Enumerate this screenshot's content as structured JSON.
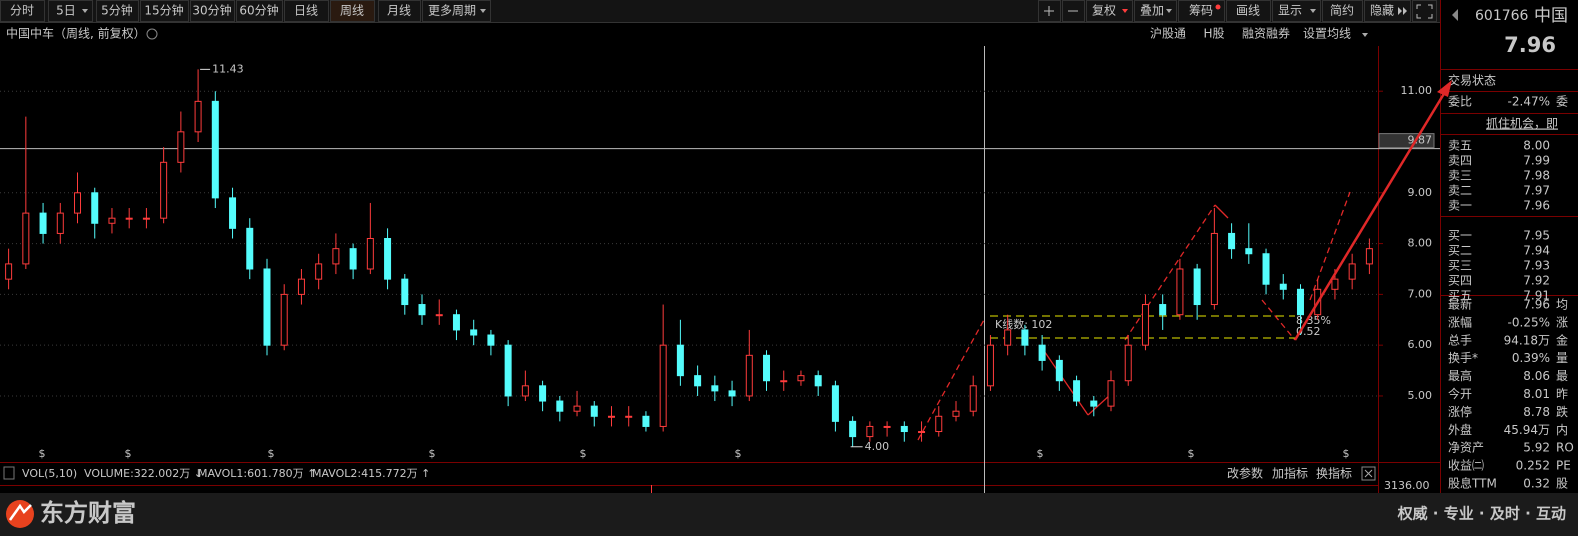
{
  "toolbar": {
    "periods": [
      "分时",
      "5日",
      "5分钟",
      "15分钟",
      "30分钟",
      "60分钟",
      "日线",
      "周线",
      "月线",
      "更多周期"
    ],
    "tools": [
      "复权",
      "叠加",
      "筹码",
      "画线",
      "显示",
      "简约",
      "隐藏"
    ]
  },
  "header": {
    "stock": "中国中车",
    "params": "（周线, 前复权）",
    "links": [
      "沪股通",
      "H股",
      "融资融券",
      "设置均线"
    ]
  },
  "chart_data": {
    "type": "candlestick",
    "candles": [
      [
        7.3,
        7.9,
        7.1,
        7.6
      ],
      [
        7.6,
        10.5,
        7.5,
        8.6
      ],
      [
        8.6,
        8.8,
        8.0,
        8.2
      ],
      [
        8.2,
        8.8,
        8.0,
        8.6
      ],
      [
        8.6,
        9.4,
        8.4,
        9.0
      ],
      [
        9.0,
        9.1,
        8.1,
        8.4
      ],
      [
        8.4,
        8.7,
        8.2,
        8.5
      ],
      [
        8.5,
        8.7,
        8.3,
        8.5
      ],
      [
        8.5,
        8.7,
        8.3,
        8.5
      ],
      [
        8.5,
        9.9,
        8.4,
        9.6
      ],
      [
        9.6,
        10.6,
        9.4,
        10.2
      ],
      [
        10.2,
        11.43,
        10.0,
        10.8
      ],
      [
        10.8,
        11.0,
        8.7,
        8.9
      ],
      [
        8.9,
        9.1,
        8.1,
        8.3
      ],
      [
        8.3,
        8.5,
        7.3,
        7.5
      ],
      [
        7.5,
        7.7,
        5.8,
        6.0
      ],
      [
        6.0,
        7.2,
        5.9,
        7.0
      ],
      [
        7.0,
        7.5,
        6.8,
        7.3
      ],
      [
        7.3,
        7.8,
        7.1,
        7.6
      ],
      [
        7.6,
        8.2,
        7.4,
        7.9
      ],
      [
        7.9,
        8.0,
        7.3,
        7.5
      ],
      [
        7.5,
        8.8,
        7.4,
        8.1
      ],
      [
        8.1,
        8.3,
        7.1,
        7.3
      ],
      [
        7.3,
        7.4,
        6.6,
        6.8
      ],
      [
        6.8,
        7.0,
        6.4,
        6.6
      ],
      [
        6.6,
        6.9,
        6.4,
        6.6
      ],
      [
        6.6,
        6.7,
        6.1,
        6.3
      ],
      [
        6.3,
        6.5,
        6.0,
        6.2
      ],
      [
        6.2,
        6.3,
        5.8,
        6.0
      ],
      [
        6.0,
        6.1,
        4.8,
        5.0
      ],
      [
        5.0,
        5.5,
        4.9,
        5.2
      ],
      [
        5.2,
        5.3,
        4.7,
        4.9
      ],
      [
        4.9,
        5.0,
        4.5,
        4.7
      ],
      [
        4.7,
        5.1,
        4.6,
        4.8
      ],
      [
        4.8,
        4.9,
        4.4,
        4.6
      ],
      [
        4.6,
        4.8,
        4.4,
        4.6
      ],
      [
        4.6,
        4.8,
        4.4,
        4.6
      ],
      [
        4.6,
        4.7,
        4.3,
        4.4
      ],
      [
        4.4,
        6.8,
        4.3,
        6.0
      ],
      [
        6.0,
        6.5,
        5.2,
        5.4
      ],
      [
        5.4,
        5.6,
        5.0,
        5.2
      ],
      [
        5.2,
        5.4,
        4.9,
        5.1
      ],
      [
        5.1,
        5.3,
        4.8,
        5.0
      ],
      [
        5.0,
        6.3,
        4.9,
        5.8
      ],
      [
        5.8,
        5.9,
        5.1,
        5.3
      ],
      [
        5.3,
        5.5,
        5.1,
        5.3
      ],
      [
        5.3,
        5.5,
        5.2,
        5.4
      ],
      [
        5.4,
        5.5,
        5.0,
        5.2
      ],
      [
        5.2,
        5.3,
        4.3,
        4.5
      ],
      [
        4.5,
        4.6,
        4.0,
        4.2
      ],
      [
        4.2,
        4.5,
        4.1,
        4.4
      ],
      [
        4.4,
        4.5,
        4.2,
        4.4
      ],
      [
        4.4,
        4.5,
        4.1,
        4.3
      ],
      [
        4.3,
        4.5,
        4.1,
        4.3
      ],
      [
        4.3,
        4.8,
        4.2,
        4.6
      ],
      [
        4.6,
        4.9,
        4.5,
        4.7
      ],
      [
        4.7,
        5.4,
        4.6,
        5.2
      ],
      [
        5.2,
        6.2,
        5.1,
        6.0
      ],
      [
        6.0,
        6.6,
        5.8,
        6.3
      ],
      [
        6.3,
        6.4,
        5.8,
        6.0
      ],
      [
        6.0,
        6.2,
        5.5,
        5.7
      ],
      [
        5.7,
        5.8,
        5.1,
        5.3
      ],
      [
        5.3,
        5.4,
        4.8,
        4.9
      ],
      [
        4.9,
        5.0,
        4.6,
        4.8
      ],
      [
        4.8,
        5.5,
        4.7,
        5.3
      ],
      [
        5.3,
        6.2,
        5.2,
        6.0
      ],
      [
        6.0,
        7.0,
        5.9,
        6.8
      ],
      [
        6.8,
        7.0,
        6.3,
        6.6
      ],
      [
        6.6,
        7.7,
        6.5,
        7.5
      ],
      [
        7.5,
        7.6,
        6.5,
        6.8
      ],
      [
        6.8,
        8.7,
        6.7,
        8.2
      ],
      [
        8.2,
        8.4,
        7.7,
        7.9
      ],
      [
        7.9,
        8.4,
        7.6,
        7.8
      ],
      [
        7.8,
        7.9,
        7.0,
        7.2
      ],
      [
        7.2,
        7.4,
        6.9,
        7.1
      ],
      [
        7.1,
        7.2,
        6.2,
        6.6
      ],
      [
        6.6,
        7.3,
        6.5,
        7.1
      ],
      [
        7.1,
        7.5,
        6.9,
        7.3
      ],
      [
        7.3,
        7.8,
        7.1,
        7.6
      ],
      [
        7.6,
        8.1,
        7.4,
        7.9
      ]
    ],
    "up_color": "#ff3c3c",
    "down_color": "#54fcfc",
    "ylim": [
      3.7,
      11.89
    ],
    "yticks": [
      {
        "value": 11,
        "label": "11.00"
      },
      {
        "value": 9,
        "label": "9.00"
      },
      {
        "value": 8,
        "label": "8.00"
      },
      {
        "value": 7,
        "label": "7.00"
      },
      {
        "value": 6,
        "label": "6.00"
      },
      {
        "value": 5,
        "label": "5.00"
      }
    ],
    "grid": true,
    "crosshair": 9.87,
    "high_label": "11.43",
    "low_label": "4.00",
    "dividend_marker": "$",
    "drawing": {
      "count_label": "K线数: 102",
      "pct_label": "8.35%",
      "diff_label": "0.52"
    }
  },
  "indicator": {
    "name": "VOL(5,10)",
    "volume": "VOLUME:322.002万 ↓",
    "mavol1": "MAVOL1:601.780万 ↑",
    "mavol2": "MAVOL2:415.772万 ↑",
    "actions": [
      "改参数",
      "加指标",
      "换指标"
    ],
    "axis_label": "3136.00"
  },
  "quote": {
    "code": "601766",
    "name": "中国",
    "price": "7.96",
    "status": "交易状态",
    "ratio": [
      "委比",
      "-2.47%",
      "委"
    ],
    "promo": "抓住机会，即",
    "book": [
      {
        "label": "卖五",
        "price": "8.00",
        "color": "#ff3c3c"
      },
      {
        "label": "卖四",
        "price": "7.99",
        "color": "#ff3c3c"
      },
      {
        "label": "卖三",
        "price": "7.98",
        "color": "#e0e0e0"
      },
      {
        "label": "卖二",
        "price": "7.97",
        "color": "#2ee62e"
      },
      {
        "label": "卖一",
        "price": "7.96",
        "color": "#2ee62e"
      },
      {
        "label": "买一",
        "price": "7.95",
        "color": "#2ee62e"
      },
      {
        "label": "买二",
        "price": "7.94",
        "color": "#2ee62e"
      },
      {
        "label": "买三",
        "price": "7.93",
        "color": "#2ee62e"
      },
      {
        "label": "买四",
        "price": "7.92",
        "color": "#2ee62e"
      },
      {
        "label": "买五",
        "price": "7.91",
        "color": "#2ee62e"
      }
    ],
    "stats": [
      {
        "label": "最新",
        "value": "7.96",
        "color": "#2ee62e",
        "tail": "均"
      },
      {
        "label": "涨幅",
        "value": "-0.25%",
        "color": "#2ee62e",
        "tail": "涨"
      },
      {
        "label": "总手",
        "value": "94.18万",
        "color": "#e0e0e0",
        "tail": "金"
      },
      {
        "label": "换手*",
        "value": "0.39%",
        "color": "#e0e0e0",
        "tail": "量"
      },
      {
        "label": "最高",
        "value": "8.06",
        "color": "#ff3c3c",
        "tail": "最"
      },
      {
        "label": "今开",
        "value": "8.01",
        "color": "#ff3c3c",
        "tail": "昨"
      },
      {
        "label": "涨停",
        "value": "8.78",
        "color": "#ff3c3c",
        "tail": "跌"
      },
      {
        "label": "外盘",
        "value": "45.94万",
        "color": "#ff3c3c",
        "tail": "内"
      },
      {
        "label": "净资产",
        "value": "5.92",
        "color": "#e0e0e0",
        "tail": "RO"
      },
      {
        "label": "收益㈡",
        "value": "0.252",
        "color": "#e0e0e0",
        "tail": "PE"
      },
      {
        "label": "股息TTM",
        "value": "0.32",
        "color": "#e0e0e0",
        "tail": "股"
      }
    ]
  },
  "footer": {
    "brand": "东方财富",
    "slogan": "权威 · 专业 · 及时 · 互动"
  }
}
